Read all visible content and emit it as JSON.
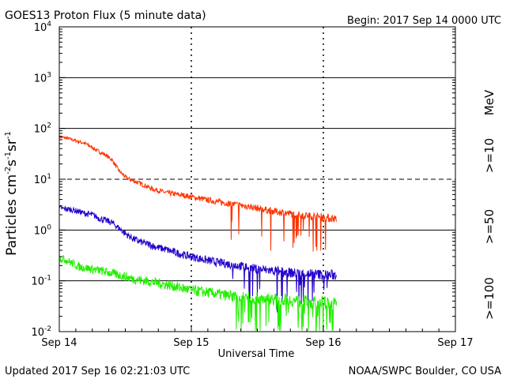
{
  "header": {
    "title": "GOES13 Proton Flux (5 minute data)",
    "begin": "Begin: 2017 Sep 14 0000 UTC"
  },
  "footer": {
    "updated": "Updated 2017 Sep 16 02:21:03 UTC",
    "credit": "NOAA/SWPC Boulder, CO USA"
  },
  "colors": {
    "ge10": "#ff3300",
    "ge50": "#2200cc",
    "ge100": "#22ee00",
    "grid": "#000000"
  },
  "chart_data": {
    "type": "line",
    "title": "GOES13 Proton Flux (5 minute data)",
    "xlabel": "Universal Time",
    "ylabel_parts": [
      "Particles cm",
      "-2",
      "s",
      "-1",
      "sr",
      "-1"
    ],
    "yscale": "log",
    "ylim": [
      0.01,
      10000
    ],
    "y_ticks": [
      {
        "label": "10",
        "exp": "4",
        "value": 10000
      },
      {
        "label": "10",
        "exp": "3",
        "value": 1000
      },
      {
        "label": "10",
        "exp": "2",
        "value": 100
      },
      {
        "label": "10",
        "exp": "1",
        "value": 10
      },
      {
        "label": "10",
        "exp": "0",
        "value": 1
      },
      {
        "label": "10",
        "exp": "-1",
        "value": 0.1
      },
      {
        "label": "10",
        "exp": "-2",
        "value": 0.01
      }
    ],
    "x_range_days": [
      0,
      3
    ],
    "x_ticks": [
      {
        "label": "Sep 14",
        "value": 0
      },
      {
        "label": "Sep 15",
        "value": 1
      },
      {
        "label": "Sep 16",
        "value": 2
      },
      {
        "label": "Sep 17",
        "value": 3
      }
    ],
    "threshold_line": 10,
    "legend_unit": "MeV",
    "series": [
      {
        "name": ">=10",
        "color_key": "ge10",
        "x": [
          0.0,
          0.05,
          0.1,
          0.15,
          0.2,
          0.25,
          0.3,
          0.35,
          0.4,
          0.45,
          0.5,
          0.55,
          0.6,
          0.65,
          0.7,
          0.75,
          0.8,
          0.85,
          0.9,
          0.95,
          1.0,
          1.1,
          1.2,
          1.3,
          1.4,
          1.5,
          1.6,
          1.7,
          1.8,
          1.9,
          2.0,
          2.05,
          2.1
        ],
        "y": [
          68,
          65,
          60,
          55,
          50,
          42,
          35,
          30,
          24,
          15,
          11,
          9.5,
          8.5,
          7.5,
          6.5,
          6.0,
          5.5,
          5.2,
          5.0,
          4.8,
          4.5,
          4.0,
          3.6,
          3.3,
          3.0,
          2.7,
          2.4,
          2.2,
          2.0,
          1.9,
          1.8,
          1.7,
          1.7
        ]
      },
      {
        "name": ">=50",
        "color_key": "ge50",
        "x": [
          0.0,
          0.05,
          0.1,
          0.15,
          0.2,
          0.25,
          0.3,
          0.35,
          0.4,
          0.45,
          0.5,
          0.55,
          0.6,
          0.65,
          0.7,
          0.75,
          0.8,
          0.85,
          0.9,
          0.95,
          1.0,
          1.1,
          1.2,
          1.3,
          1.4,
          1.5,
          1.6,
          1.7,
          1.8,
          1.9,
          2.0,
          2.05,
          2.1
        ],
        "y": [
          2.7,
          2.6,
          2.5,
          2.3,
          2.1,
          2.0,
          1.7,
          1.55,
          1.4,
          1.1,
          0.85,
          0.7,
          0.6,
          0.55,
          0.5,
          0.45,
          0.42,
          0.38,
          0.35,
          0.32,
          0.3,
          0.26,
          0.23,
          0.21,
          0.19,
          0.17,
          0.16,
          0.15,
          0.14,
          0.14,
          0.13,
          0.13,
          0.13
        ]
      },
      {
        "name": ">=100",
        "color_key": "ge100",
        "x": [
          0.0,
          0.05,
          0.1,
          0.15,
          0.2,
          0.25,
          0.3,
          0.35,
          0.4,
          0.45,
          0.5,
          0.55,
          0.6,
          0.65,
          0.7,
          0.75,
          0.8,
          0.85,
          0.9,
          0.95,
          1.0,
          1.1,
          1.2,
          1.3,
          1.4,
          1.5,
          1.6,
          1.7,
          1.8,
          1.9,
          2.0,
          2.05,
          2.1
        ],
        "y": [
          0.28,
          0.26,
          0.22,
          0.19,
          0.18,
          0.17,
          0.16,
          0.15,
          0.14,
          0.13,
          0.12,
          0.11,
          0.105,
          0.1,
          0.095,
          0.09,
          0.085,
          0.08,
          0.075,
          0.07,
          0.065,
          0.06,
          0.055,
          0.05,
          0.048,
          0.046,
          0.044,
          0.042,
          0.04,
          0.038,
          0.037,
          0.036,
          0.035
        ]
      }
    ]
  }
}
